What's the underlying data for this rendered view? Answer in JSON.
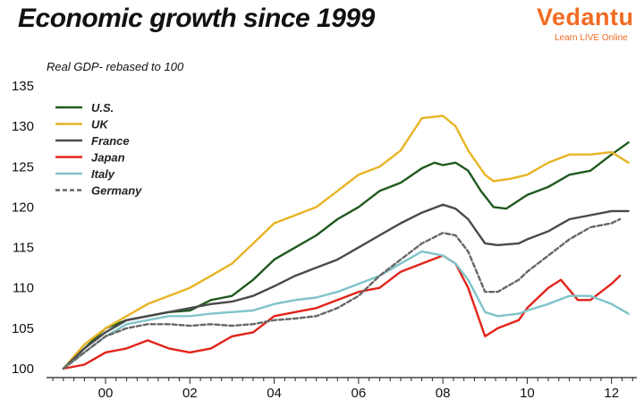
{
  "header": {
    "title": "Economic growth since 1999",
    "subtitle": "Real GDP- rebased to 100"
  },
  "logo": {
    "name": "Vedantu",
    "tagline": "Learn LIVE Online"
  },
  "chart_data": {
    "type": "line",
    "title": "Economic growth since 1999",
    "ylabel": "Real GDP- rebased to 100",
    "xlabel": "",
    "xlim": [
      1998.6,
      2012.6
    ],
    "ylim": [
      100,
      135
    ],
    "yticks": [
      100,
      105,
      110,
      115,
      120,
      125,
      130,
      135
    ],
    "xticks": [
      {
        "value": 2000,
        "label": "00"
      },
      {
        "value": 2002,
        "label": "02"
      },
      {
        "value": 2004,
        "label": "04"
      },
      {
        "value": 2006,
        "label": "06"
      },
      {
        "value": 2008,
        "label": "08"
      },
      {
        "value": 2010,
        "label": "10"
      },
      {
        "value": 2012,
        "label": "12"
      }
    ],
    "grid": false,
    "legend_position": "top-left",
    "series": [
      {
        "name": "U.S.",
        "color": "#1f5a1f",
        "dashed": false,
        "points": [
          [
            1999.0,
            100
          ],
          [
            1999.5,
            102.5
          ],
          [
            2000.0,
            105
          ],
          [
            2000.5,
            106
          ],
          [
            2001.0,
            106.5
          ],
          [
            2001.5,
            107
          ],
          [
            2002.0,
            107.2
          ],
          [
            2002.5,
            108.5
          ],
          [
            2003.0,
            109
          ],
          [
            2003.5,
            111
          ],
          [
            2004.0,
            113.5
          ],
          [
            2004.5,
            115
          ],
          [
            2005.0,
            116.5
          ],
          [
            2005.5,
            118.5
          ],
          [
            2006.0,
            120
          ],
          [
            2006.5,
            122
          ],
          [
            2007.0,
            123
          ],
          [
            2007.5,
            124.8
          ],
          [
            2007.8,
            125.5
          ],
          [
            2008.0,
            125.2
          ],
          [
            2008.3,
            125.5
          ],
          [
            2008.6,
            124.5
          ],
          [
            2008.9,
            122
          ],
          [
            2009.2,
            120
          ],
          [
            2009.5,
            119.8
          ],
          [
            2010.0,
            121.5
          ],
          [
            2010.5,
            122.5
          ],
          [
            2011.0,
            124
          ],
          [
            2011.5,
            124.5
          ],
          [
            2012.0,
            126.5
          ],
          [
            2012.4,
            128
          ]
        ]
      },
      {
        "name": "UK",
        "color": "#e8b425",
        "dashed": false,
        "points": [
          [
            1999.0,
            100
          ],
          [
            1999.5,
            103
          ],
          [
            2000.0,
            105
          ],
          [
            2000.5,
            106.5
          ],
          [
            2001.0,
            108
          ],
          [
            2001.5,
            109
          ],
          [
            2002.0,
            110
          ],
          [
            2002.5,
            111.5
          ],
          [
            2003.0,
            113
          ],
          [
            2003.5,
            115.5
          ],
          [
            2004.0,
            118
          ],
          [
            2004.5,
            119
          ],
          [
            2005.0,
            120
          ],
          [
            2005.5,
            122
          ],
          [
            2006.0,
            124
          ],
          [
            2006.5,
            125
          ],
          [
            2007.0,
            127
          ],
          [
            2007.5,
            131
          ],
          [
            2008.0,
            131.3
          ],
          [
            2008.3,
            130
          ],
          [
            2008.6,
            127
          ],
          [
            2009.0,
            124
          ],
          [
            2009.2,
            123.2
          ],
          [
            2009.6,
            123.5
          ],
          [
            2010.0,
            124
          ],
          [
            2010.5,
            125.5
          ],
          [
            2011.0,
            126.5
          ],
          [
            2011.5,
            126.5
          ],
          [
            2012.0,
            126.8
          ],
          [
            2012.4,
            125.5
          ]
        ]
      },
      {
        "name": "France",
        "color": "#4a4a4a",
        "dashed": false,
        "points": [
          [
            1999.0,
            100
          ],
          [
            1999.5,
            102.5
          ],
          [
            2000.0,
            104.5
          ],
          [
            2000.5,
            106
          ],
          [
            2001.0,
            106.5
          ],
          [
            2001.5,
            107
          ],
          [
            2002.0,
            107.5
          ],
          [
            2002.5,
            108
          ],
          [
            2003.0,
            108.3
          ],
          [
            2003.5,
            109
          ],
          [
            2004.0,
            110.2
          ],
          [
            2004.5,
            111.5
          ],
          [
            2005.0,
            112.5
          ],
          [
            2005.5,
            113.5
          ],
          [
            2006.0,
            115
          ],
          [
            2006.5,
            116.5
          ],
          [
            2007.0,
            118
          ],
          [
            2007.5,
            119.3
          ],
          [
            2008.0,
            120.3
          ],
          [
            2008.3,
            119.8
          ],
          [
            2008.6,
            118.5
          ],
          [
            2009.0,
            115.5
          ],
          [
            2009.3,
            115.3
          ],
          [
            2009.8,
            115.5
          ],
          [
            2010.0,
            116
          ],
          [
            2010.5,
            117
          ],
          [
            2011.0,
            118.5
          ],
          [
            2011.5,
            119
          ],
          [
            2012.0,
            119.5
          ],
          [
            2012.4,
            119.5
          ]
        ]
      },
      {
        "name": "Japan",
        "color": "#e2231a",
        "dashed": false,
        "points": [
          [
            1999.0,
            100
          ],
          [
            1999.5,
            100.5
          ],
          [
            2000.0,
            102
          ],
          [
            2000.5,
            102.5
          ],
          [
            2001.0,
            103.5
          ],
          [
            2001.5,
            102.5
          ],
          [
            2002.0,
            102
          ],
          [
            2002.5,
            102.5
          ],
          [
            2003.0,
            104
          ],
          [
            2003.5,
            104.5
          ],
          [
            2004.0,
            106.5
          ],
          [
            2004.5,
            107
          ],
          [
            2005.0,
            107.5
          ],
          [
            2005.5,
            108.5
          ],
          [
            2006.0,
            109.5
          ],
          [
            2006.5,
            110
          ],
          [
            2007.0,
            112
          ],
          [
            2007.5,
            113
          ],
          [
            2008.0,
            114
          ],
          [
            2008.3,
            113
          ],
          [
            2008.6,
            110
          ],
          [
            2009.0,
            104
          ],
          [
            2009.3,
            105
          ],
          [
            2009.8,
            106
          ],
          [
            2010.0,
            107.5
          ],
          [
            2010.5,
            110
          ],
          [
            2010.8,
            111
          ],
          [
            2011.2,
            108.5
          ],
          [
            2011.5,
            108.5
          ],
          [
            2012.0,
            110.5
          ],
          [
            2012.2,
            111.5
          ]
        ]
      },
      {
        "name": "Italy",
        "color": "#7fc4c8",
        "dashed": false,
        "points": [
          [
            1999.0,
            100
          ],
          [
            1999.5,
            102
          ],
          [
            2000.0,
            104
          ],
          [
            2000.5,
            105.5
          ],
          [
            2001.0,
            106
          ],
          [
            2001.5,
            106.5
          ],
          [
            2002.0,
            106.5
          ],
          [
            2002.5,
            106.8
          ],
          [
            2003.0,
            107
          ],
          [
            2003.5,
            107.2
          ],
          [
            2004.0,
            108
          ],
          [
            2004.5,
            108.5
          ],
          [
            2005.0,
            108.8
          ],
          [
            2005.5,
            109.5
          ],
          [
            2006.0,
            110.5
          ],
          [
            2006.5,
            111.5
          ],
          [
            2007.0,
            113
          ],
          [
            2007.5,
            114.5
          ],
          [
            2008.0,
            114
          ],
          [
            2008.3,
            113
          ],
          [
            2008.6,
            111
          ],
          [
            2009.0,
            107
          ],
          [
            2009.3,
            106.5
          ],
          [
            2009.8,
            106.8
          ],
          [
            2010.0,
            107.2
          ],
          [
            2010.5,
            108
          ],
          [
            2011.0,
            109
          ],
          [
            2011.5,
            109
          ],
          [
            2012.0,
            108
          ],
          [
            2012.4,
            106.8
          ]
        ]
      },
      {
        "name": "Germany",
        "color": "#666666",
        "dashed": true,
        "points": [
          [
            1999.0,
            100
          ],
          [
            1999.5,
            102
          ],
          [
            2000.0,
            104
          ],
          [
            2000.5,
            105
          ],
          [
            2001.0,
            105.5
          ],
          [
            2001.5,
            105.5
          ],
          [
            2002.0,
            105.3
          ],
          [
            2002.5,
            105.5
          ],
          [
            2003.0,
            105.3
          ],
          [
            2003.5,
            105.5
          ],
          [
            2004.0,
            106
          ],
          [
            2004.5,
            106.2
          ],
          [
            2005.0,
            106.5
          ],
          [
            2005.5,
            107.5
          ],
          [
            2006.0,
            109
          ],
          [
            2006.5,
            111.5
          ],
          [
            2007.0,
            113.5
          ],
          [
            2007.5,
            115.5
          ],
          [
            2008.0,
            116.8
          ],
          [
            2008.3,
            116.5
          ],
          [
            2008.6,
            114.5
          ],
          [
            2009.0,
            109.5
          ],
          [
            2009.3,
            109.5
          ],
          [
            2009.8,
            111
          ],
          [
            2010.0,
            112
          ],
          [
            2010.5,
            114
          ],
          [
            2011.0,
            116
          ],
          [
            2011.5,
            117.5
          ],
          [
            2012.0,
            118
          ],
          [
            2012.2,
            118.5
          ]
        ]
      }
    ]
  }
}
